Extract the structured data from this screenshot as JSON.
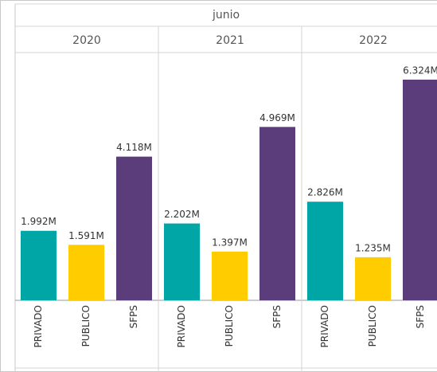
{
  "chart_data": {
    "type": "bar",
    "header": "junio",
    "categories": [
      "PRIVADO",
      "PUBLICO",
      "SFPS"
    ],
    "colors": [
      "#00a6a6",
      "#ffcc00",
      "#5b3d7c"
    ],
    "panels": [
      {
        "name": "2020",
        "values": [
          1992000,
          1591000,
          4118000
        ],
        "value_labels": [
          "1.992M",
          "1.591M",
          "4.118M"
        ]
      },
      {
        "name": "2021",
        "values": [
          2202000,
          1397000,
          4969000
        ],
        "value_labels": [
          "2.202M",
          "1.397M",
          "4.969M"
        ]
      },
      {
        "name": "2022",
        "values": [
          2826000,
          1235000,
          6324000
        ],
        "value_labels": [
          "2.826M",
          "1.235M",
          "6.324M"
        ]
      }
    ]
  }
}
